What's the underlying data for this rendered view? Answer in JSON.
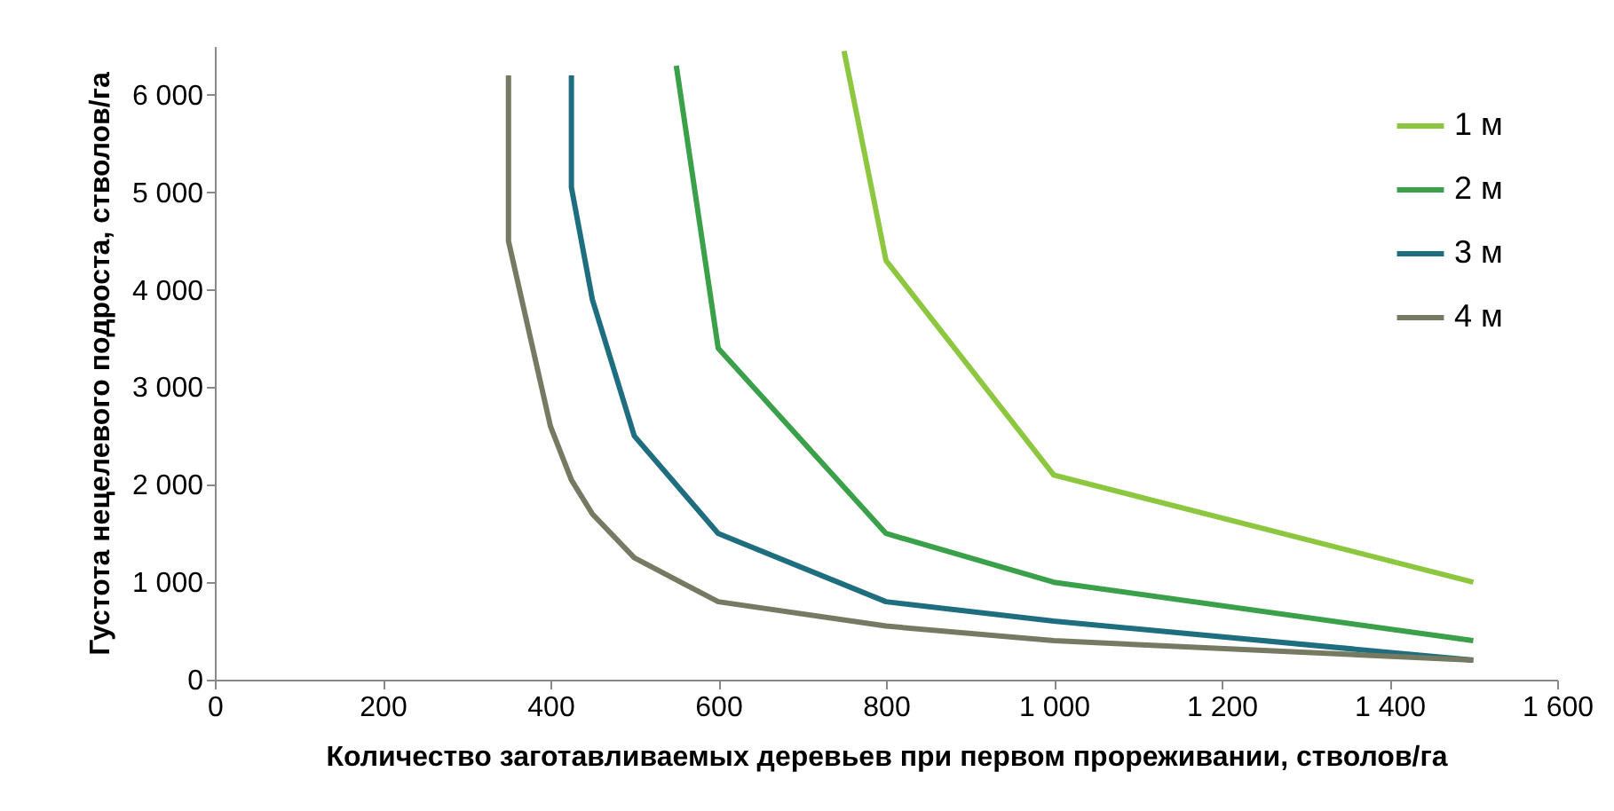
{
  "chart_data": {
    "type": "line",
    "xlabel": "Количество заготавливаемых деревьев при первом прореживании, стволов/га",
    "ylabel": "Густота нецелевого подроста, стволов/га",
    "xlim": [
      0,
      1600
    ],
    "xticks": [
      0,
      200,
      400,
      600,
      800,
      {
        "value": 1000,
        "label": "1 000"
      },
      {
        "value": 1200,
        "label": "1 200"
      },
      {
        "value": 1400,
        "label": "1 400"
      },
      {
        "value": 1600,
        "label": "1 600"
      }
    ],
    "ylim": [
      0,
      6500
    ],
    "yticks": [
      0,
      {
        "value": 1000,
        "label": "1 000"
      },
      {
        "value": 2000,
        "label": "2 000"
      },
      {
        "value": 3000,
        "label": "3 000"
      },
      {
        "value": 4000,
        "label": "4 000"
      },
      {
        "value": 5000,
        "label": "5 000"
      },
      {
        "value": 6000,
        "label": "6 000"
      }
    ],
    "grid": false,
    "legend": "top right",
    "marker": "none",
    "line_style": "solid",
    "series": [
      {
        "name": "1 м",
        "color": "#8dc63f",
        "x": [
          750,
          800,
          1000,
          1500
        ],
        "values": [
          6450,
          4300,
          2100,
          1000
        ]
      },
      {
        "name": "2 м",
        "color": "#3aa04a",
        "x": [
          550,
          600,
          800,
          1000,
          1500
        ],
        "values": [
          6300,
          3400,
          1500,
          1000,
          400
        ]
      },
      {
        "name": "3 м",
        "color": "#1f6e7f",
        "x": [
          425,
          425,
          450,
          500,
          600,
          800,
          1000,
          1500
        ],
        "values": [
          6200,
          5050,
          3900,
          2500,
          1500,
          800,
          600,
          200
        ]
      },
      {
        "name": "4 м",
        "color": "#767a62",
        "x": [
          350,
          350,
          400,
          425,
          450,
          500,
          600,
          800,
          1000,
          1500
        ],
        "values": [
          6200,
          4500,
          2600,
          2050,
          1700,
          1250,
          800,
          550,
          400,
          200
        ]
      }
    ]
  }
}
